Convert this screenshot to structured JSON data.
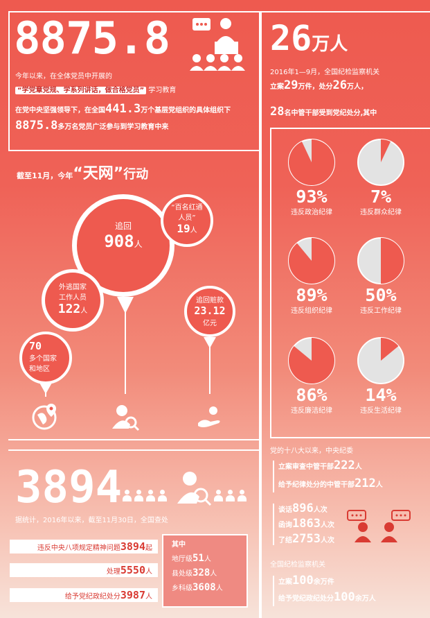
{
  "section1": {
    "headline": "8875.8",
    "line1": "今年以来，在全体党员中开展的",
    "quote": "“学党章党规、学系列讲话，做合格党员”",
    "line2_suffix": "学习教育",
    "line3_a": "在党中央坚强领导下，在全国",
    "line3_num": "441.3",
    "line3_b": "万个基层党组织的具体组织下",
    "line4_num": "8875.8",
    "line4_b": "多万名党员广泛参与到学习教育中来"
  },
  "section2": {
    "title_prefix": "截至11月，今年",
    "title_quoted": "“天网”",
    "title_suffix": "行动",
    "bubbles": {
      "recovered_label": "追回",
      "recovered_num": "908",
      "recovered_unit": "人",
      "fled_label_1": "外逃国家",
      "fled_label_2": "工作人员",
      "fled_num": "122",
      "fled_unit": "人",
      "red_label_1": "“百名红通",
      "red_label_2": "人员”",
      "red_num": "19",
      "red_unit": "人",
      "money_label": "追回赃款",
      "money_num": "23.12",
      "money_unit": "亿元",
      "countries_num": "70",
      "countries_label_1": "多个国家",
      "countries_label_2": "和地区"
    },
    "icons": [
      "globe-pin-icon",
      "person-search-icon",
      "hand-money-icon"
    ]
  },
  "section3": {
    "headline": "3894",
    "subtitle": "据统计，2016年以来，截至11月30日，全国查处",
    "bars": [
      {
        "label": "违反中央八项规定精神问题",
        "num": "3894",
        "unit": "起"
      },
      {
        "label": "处理",
        "num": "5550",
        "unit": "人"
      },
      {
        "label": "给予党纪政纪处分",
        "num": "3987",
        "unit": "人"
      }
    ],
    "sub_title": "其中",
    "sub_items": [
      {
        "label": "地厅级",
        "num": "51",
        "unit": "人"
      },
      {
        "label": "县处级",
        "num": "328",
        "unit": "人"
      },
      {
        "label": "乡科级",
        "num": "3608",
        "unit": "人"
      }
    ]
  },
  "right": {
    "headline_num": "26",
    "headline_unit": "万人",
    "line1": "2016年1—9月，全国纪检监察机关",
    "line2_a": "立案",
    "line2_n1": "29",
    "line2_b": "万件，处分",
    "line2_n2": "26",
    "line2_c": "万人，",
    "line3_num": "28",
    "line3_text": "名中管干部受到党纪处分,其中",
    "pies": [
      {
        "pct": "93%",
        "value": 93,
        "label": "违反政治纪律",
        "style": "red"
      },
      {
        "pct": "7%",
        "value": 7,
        "label": "违反群众纪律",
        "style": "gray"
      },
      {
        "pct": "89%",
        "value": 89,
        "label": "违反组织纪律",
        "style": "red"
      },
      {
        "pct": "50%",
        "value": 50,
        "label": "违反工作纪律",
        "style": "gray"
      },
      {
        "pct": "86%",
        "value": 86,
        "label": "违反廉洁纪律",
        "style": "red"
      },
      {
        "pct": "14%",
        "value": 14,
        "label": "违反生活纪律",
        "style": "gray"
      }
    ],
    "since_title": "党的十八大以来，中央纪委",
    "since_1_a": "立案审查中管干部",
    "since_1_n": "222",
    "since_1_u": "人",
    "since_2_a": "给予纪律处分的中管干部",
    "since_2_n": "212",
    "since_2_u": "人",
    "talk_a": "谈话",
    "talk_n": "896",
    "talk_u": "人次",
    "letter_a": "函询",
    "letter_n": "1863",
    "letter_u": "人次",
    "close_a": "了结",
    "close_n": "2753",
    "close_u": "人次",
    "nat_title": "全国纪检监察机关",
    "nat_1_a": "立案",
    "nat_1_n": "100",
    "nat_1_u": "余万件",
    "nat_2_a": "给予党纪政纪处分",
    "nat_2_n": "100",
    "nat_2_u": "余万人"
  },
  "colors": {
    "primary": "#ee5a4f",
    "pie_gray": "#e3e3e3",
    "white": "#ffffff"
  }
}
